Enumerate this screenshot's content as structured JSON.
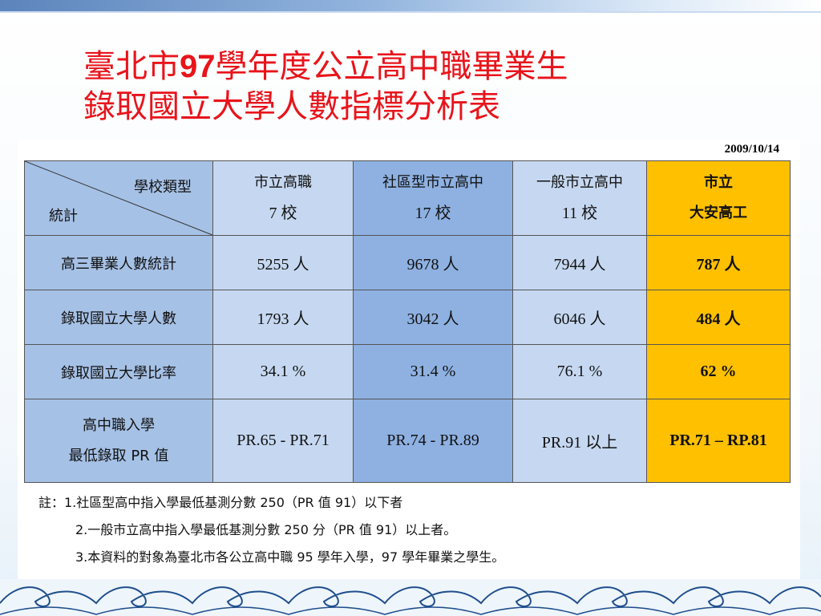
{
  "title": {
    "line1_pre": "臺北市",
    "line1_num": "97",
    "line1_post": "學年度公立高中職畢業生",
    "line2": "錄取國立大學人數指標分析表"
  },
  "date": "2009/10/14",
  "table": {
    "corner_top": "學校類型",
    "corner_bottom": "統計",
    "columns": [
      {
        "line1": "市立高職",
        "line2": "7 校"
      },
      {
        "line1": "社區型市立高中",
        "line2": "17 校"
      },
      {
        "line1": "一般市立高中",
        "line2": "11 校"
      },
      {
        "line1": "市立",
        "line2": "大安高工"
      }
    ],
    "rows": [
      {
        "label": "高三畢業人數統計",
        "values": [
          "5255 人",
          "9678 人",
          "7944 人",
          "787 人"
        ]
      },
      {
        "label": "錄取國立大學人數",
        "values": [
          "1793 人",
          "3042 人",
          "6046 人",
          "484 人"
        ]
      },
      {
        "label": "錄取國立大學比率",
        "values": [
          "34.1 %",
          "31.4 %",
          "76.1 %",
          "62 %"
        ]
      },
      {
        "label_line1": "高中職入學",
        "label_line2": "最低錄取 PR 值",
        "values": [
          "PR.65 - PR.71",
          "PR.74 - PR.89",
          "PR.91 以上",
          "PR.71 – RP.81"
        ]
      }
    ]
  },
  "notes": [
    "註：1.社區型高中指入學最低基測分數 250（PR 值 91）以下者",
    "2.一般市立高中指入學最低基測分數 250 分（PR 值 91）以上者。",
    "3.本資料的對象為臺北市各公立高中職 95 學年入學，97 學年畢業之學生。"
  ],
  "colors": {
    "title": "#e8141b",
    "highlight": "#ffc000",
    "blue_dark": "#8eb1e2",
    "blue_light": "#c6d8f1"
  }
}
